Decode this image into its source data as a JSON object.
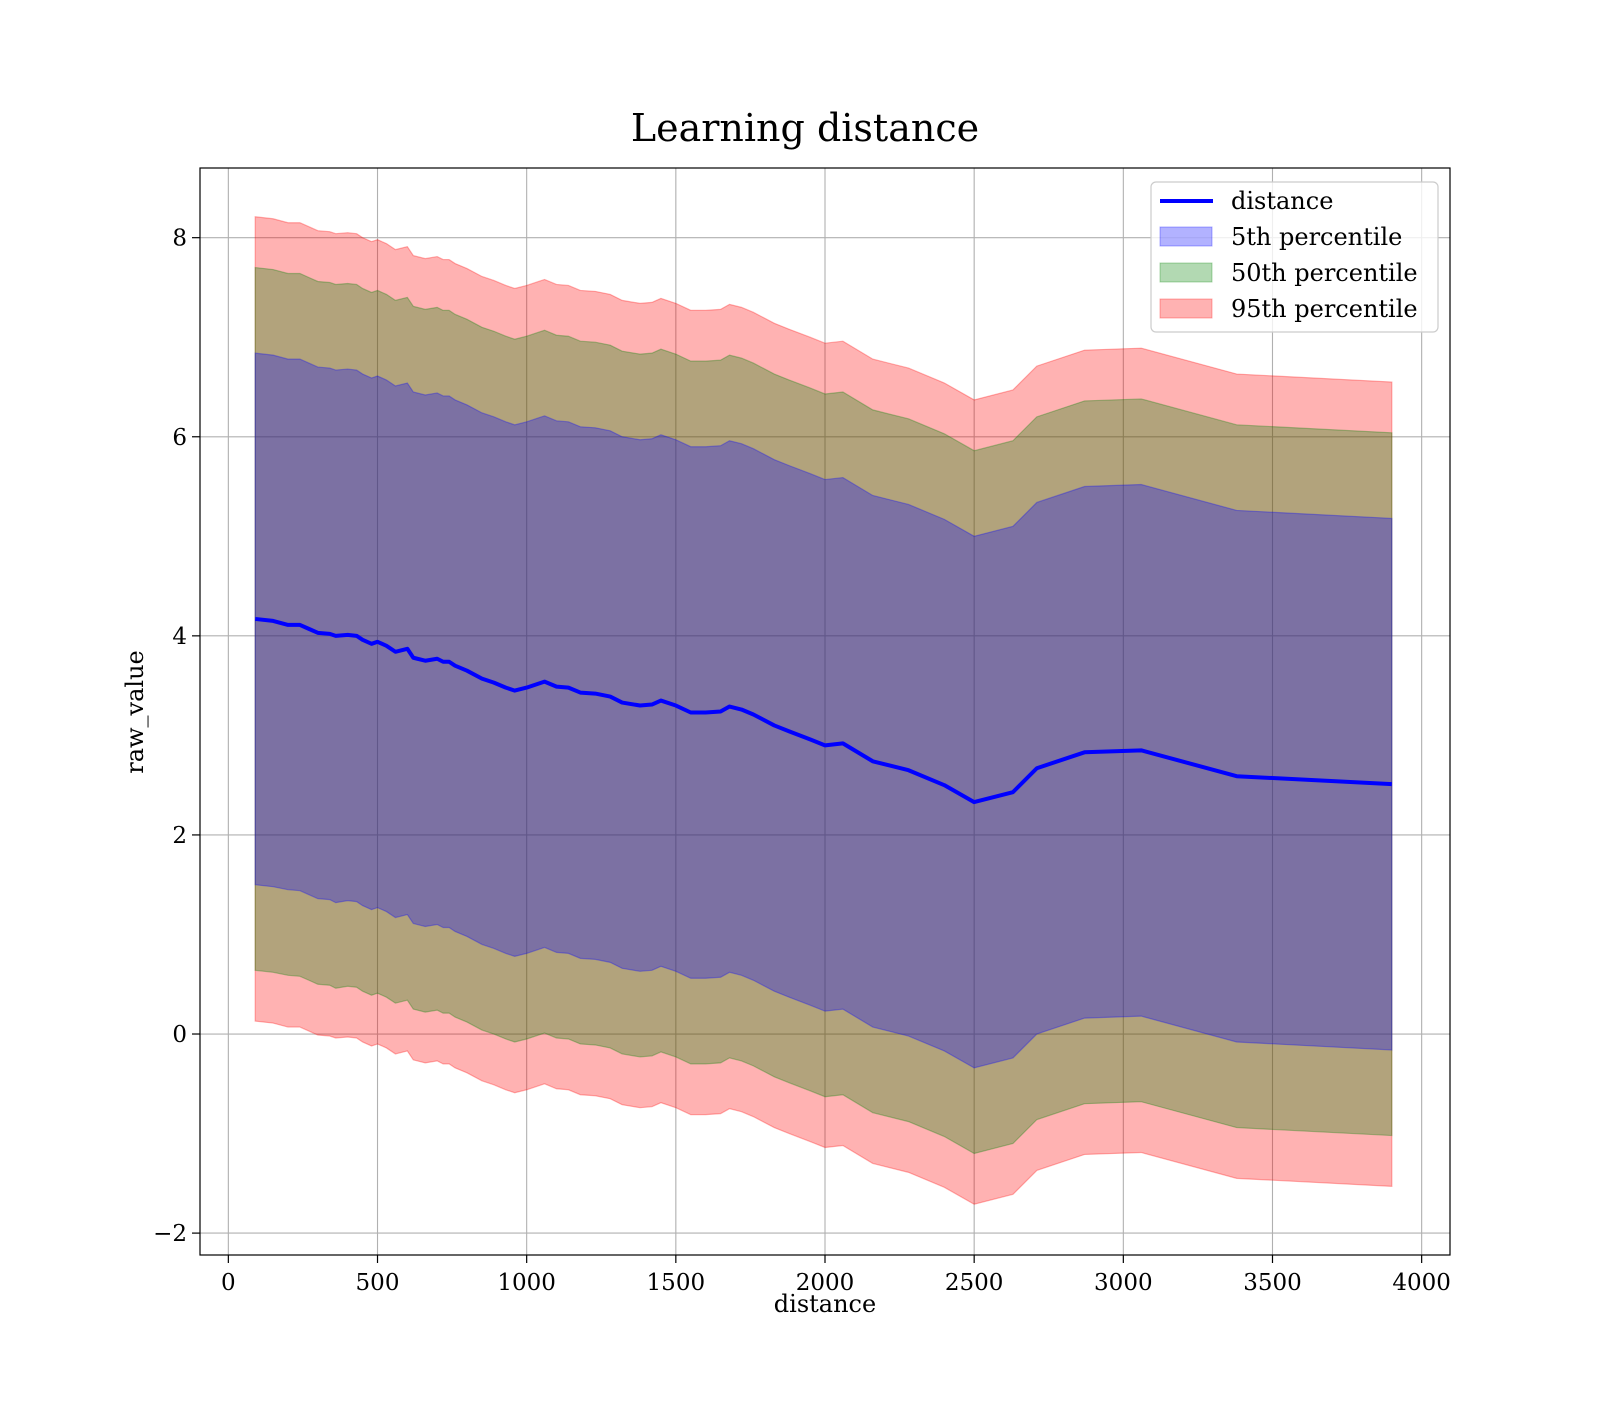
{
  "chart_data": {
    "type": "line",
    "title": "Learning distance",
    "xlabel": "distance",
    "ylabel": "raw_value",
    "xlim": [
      -95,
      4095
    ],
    "ylim": [
      -2.22,
      8.7
    ],
    "grid": true,
    "xticks": [
      0,
      500,
      1000,
      1500,
      2000,
      2500,
      3000,
      3500,
      4000
    ],
    "yticks": [
      -2,
      0,
      2,
      4,
      6,
      8
    ],
    "x_tick_labels": [
      "0",
      "500",
      "1000",
      "1500",
      "2000",
      "2500",
      "3000",
      "3500",
      "4000"
    ],
    "y_tick_labels": [
      "−2",
      "0",
      "2",
      "4",
      "6",
      "8"
    ],
    "legend_position": "top-right",
    "legend": [
      {
        "label": "distance",
        "kind": "line",
        "color": "#0000ff"
      },
      {
        "label": "5th percentile",
        "kind": "patch",
        "color": "#0000ff",
        "alpha": 0.3
      },
      {
        "label": "50th percentile",
        "kind": "patch",
        "color": "#008000",
        "alpha": 0.3
      },
      {
        "label": "95th percentile",
        "kind": "patch",
        "color": "#ff0000",
        "alpha": 0.3
      }
    ],
    "x": [
      90,
      150,
      200,
      240,
      270,
      300,
      340,
      360,
      400,
      430,
      450,
      480,
      500,
      530,
      560,
      600,
      620,
      660,
      700,
      720,
      740,
      760,
      800,
      850,
      890,
      930,
      960,
      1000,
      1040,
      1060,
      1100,
      1140,
      1180,
      1230,
      1280,
      1320,
      1380,
      1420,
      1450,
      1500,
      1550,
      1600,
      1650,
      1680,
      1720,
      1760,
      1830,
      1880,
      1950,
      2000,
      2060,
      2160,
      2280,
      2400,
      2500,
      2630,
      2710,
      2870,
      3060,
      3380,
      3900
    ],
    "series": [
      {
        "name": "distance",
        "color": "#0000ff",
        "values": [
          4.17,
          4.15,
          4.11,
          4.11,
          4.07,
          4.03,
          4.02,
          4.0,
          4.01,
          4.0,
          3.96,
          3.92,
          3.94,
          3.9,
          3.84,
          3.87,
          3.78,
          3.75,
          3.77,
          3.74,
          3.74,
          3.7,
          3.65,
          3.57,
          3.53,
          3.48,
          3.45,
          3.48,
          3.52,
          3.54,
          3.49,
          3.48,
          3.43,
          3.42,
          3.39,
          3.33,
          3.3,
          3.31,
          3.35,
          3.3,
          3.23,
          3.23,
          3.24,
          3.29,
          3.26,
          3.21,
          3.1,
          3.04,
          2.96,
          2.9,
          2.92,
          2.74,
          2.65,
          2.5,
          2.33,
          2.43,
          2.67,
          2.83,
          2.85,
          2.59,
          2.51
        ]
      },
      {
        "name": "5th percentile",
        "color": "#0000ff",
        "lower": [
          1.5,
          1.48,
          1.45,
          1.44,
          1.4,
          1.36,
          1.35,
          1.32,
          1.34,
          1.33,
          1.29,
          1.25,
          1.27,
          1.23,
          1.17,
          1.2,
          1.11,
          1.08,
          1.1,
          1.07,
          1.07,
          1.03,
          0.98,
          0.9,
          0.86,
          0.81,
          0.78,
          0.81,
          0.85,
          0.87,
          0.82,
          0.81,
          0.76,
          0.75,
          0.72,
          0.66,
          0.63,
          0.64,
          0.68,
          0.63,
          0.56,
          0.56,
          0.57,
          0.62,
          0.59,
          0.54,
          0.43,
          0.37,
          0.29,
          0.23,
          0.25,
          0.07,
          -0.02,
          -0.17,
          -0.34,
          -0.24,
          0.0,
          0.16,
          0.18,
          -0.08,
          -0.16
        ],
        "upper": [
          6.84,
          6.82,
          6.78,
          6.78,
          6.74,
          6.7,
          6.69,
          6.67,
          6.68,
          6.67,
          6.63,
          6.59,
          6.61,
          6.57,
          6.51,
          6.54,
          6.45,
          6.42,
          6.44,
          6.41,
          6.41,
          6.37,
          6.32,
          6.24,
          6.2,
          6.15,
          6.12,
          6.15,
          6.19,
          6.21,
          6.16,
          6.15,
          6.1,
          6.09,
          6.06,
          6.0,
          5.97,
          5.98,
          6.02,
          5.97,
          5.9,
          5.9,
          5.91,
          5.96,
          5.93,
          5.88,
          5.77,
          5.71,
          5.63,
          5.57,
          5.59,
          5.41,
          5.32,
          5.17,
          5.0,
          5.1,
          5.34,
          5.5,
          5.52,
          5.26,
          5.18
        ]
      },
      {
        "name": "50th percentile",
        "color": "#008000",
        "lower": [
          0.64,
          0.62,
          0.59,
          0.58,
          0.54,
          0.5,
          0.49,
          0.46,
          0.48,
          0.47,
          0.43,
          0.39,
          0.41,
          0.37,
          0.31,
          0.34,
          0.25,
          0.22,
          0.24,
          0.21,
          0.21,
          0.17,
          0.12,
          0.04,
          0.0,
          -0.05,
          -0.08,
          -0.05,
          -0.01,
          0.01,
          -0.04,
          -0.05,
          -0.1,
          -0.11,
          -0.14,
          -0.2,
          -0.23,
          -0.22,
          -0.18,
          -0.23,
          -0.3,
          -0.3,
          -0.29,
          -0.24,
          -0.27,
          -0.32,
          -0.43,
          -0.49,
          -0.57,
          -0.63,
          -0.61,
          -0.79,
          -0.88,
          -1.03,
          -1.2,
          -1.1,
          -0.86,
          -0.7,
          -0.68,
          -0.94,
          -1.02
        ],
        "upper": [
          7.7,
          7.68,
          7.64,
          7.64,
          7.6,
          7.56,
          7.55,
          7.53,
          7.54,
          7.53,
          7.49,
          7.45,
          7.47,
          7.43,
          7.37,
          7.4,
          7.31,
          7.28,
          7.3,
          7.27,
          7.27,
          7.23,
          7.18,
          7.1,
          7.06,
          7.01,
          6.98,
          7.01,
          7.05,
          7.07,
          7.02,
          7.01,
          6.96,
          6.95,
          6.92,
          6.86,
          6.83,
          6.84,
          6.88,
          6.83,
          6.76,
          6.76,
          6.77,
          6.82,
          6.79,
          6.74,
          6.63,
          6.57,
          6.49,
          6.43,
          6.45,
          6.27,
          6.18,
          6.03,
          5.86,
          5.96,
          6.2,
          6.36,
          6.38,
          6.12,
          6.04
        ]
      },
      {
        "name": "95th percentile",
        "color": "#ff0000",
        "lower": [
          0.13,
          0.11,
          0.07,
          0.07,
          0.03,
          -0.01,
          -0.02,
          -0.04,
          -0.03,
          -0.04,
          -0.08,
          -0.12,
          -0.1,
          -0.14,
          -0.2,
          -0.17,
          -0.26,
          -0.29,
          -0.27,
          -0.3,
          -0.3,
          -0.34,
          -0.39,
          -0.47,
          -0.51,
          -0.56,
          -0.59,
          -0.56,
          -0.52,
          -0.5,
          -0.55,
          -0.56,
          -0.61,
          -0.62,
          -0.65,
          -0.71,
          -0.74,
          -0.73,
          -0.69,
          -0.74,
          -0.81,
          -0.81,
          -0.8,
          -0.75,
          -0.78,
          -0.83,
          -0.94,
          -1.0,
          -1.08,
          -1.14,
          -1.12,
          -1.3,
          -1.39,
          -1.54,
          -1.71,
          -1.61,
          -1.37,
          -1.21,
          -1.19,
          -1.45,
          -1.53
        ],
        "upper": [
          8.21,
          8.19,
          8.15,
          8.15,
          8.11,
          8.07,
          8.06,
          8.04,
          8.05,
          8.04,
          8.0,
          7.96,
          7.98,
          7.94,
          7.88,
          7.91,
          7.82,
          7.79,
          7.81,
          7.78,
          7.78,
          7.74,
          7.69,
          7.61,
          7.57,
          7.52,
          7.49,
          7.52,
          7.56,
          7.58,
          7.53,
          7.52,
          7.47,
          7.46,
          7.43,
          7.37,
          7.34,
          7.35,
          7.39,
          7.34,
          7.27,
          7.27,
          7.28,
          7.33,
          7.3,
          7.25,
          7.14,
          7.08,
          7.0,
          6.94,
          6.96,
          6.78,
          6.69,
          6.54,
          6.37,
          6.47,
          6.71,
          6.87,
          6.89,
          6.63,
          6.55
        ]
      }
    ]
  }
}
